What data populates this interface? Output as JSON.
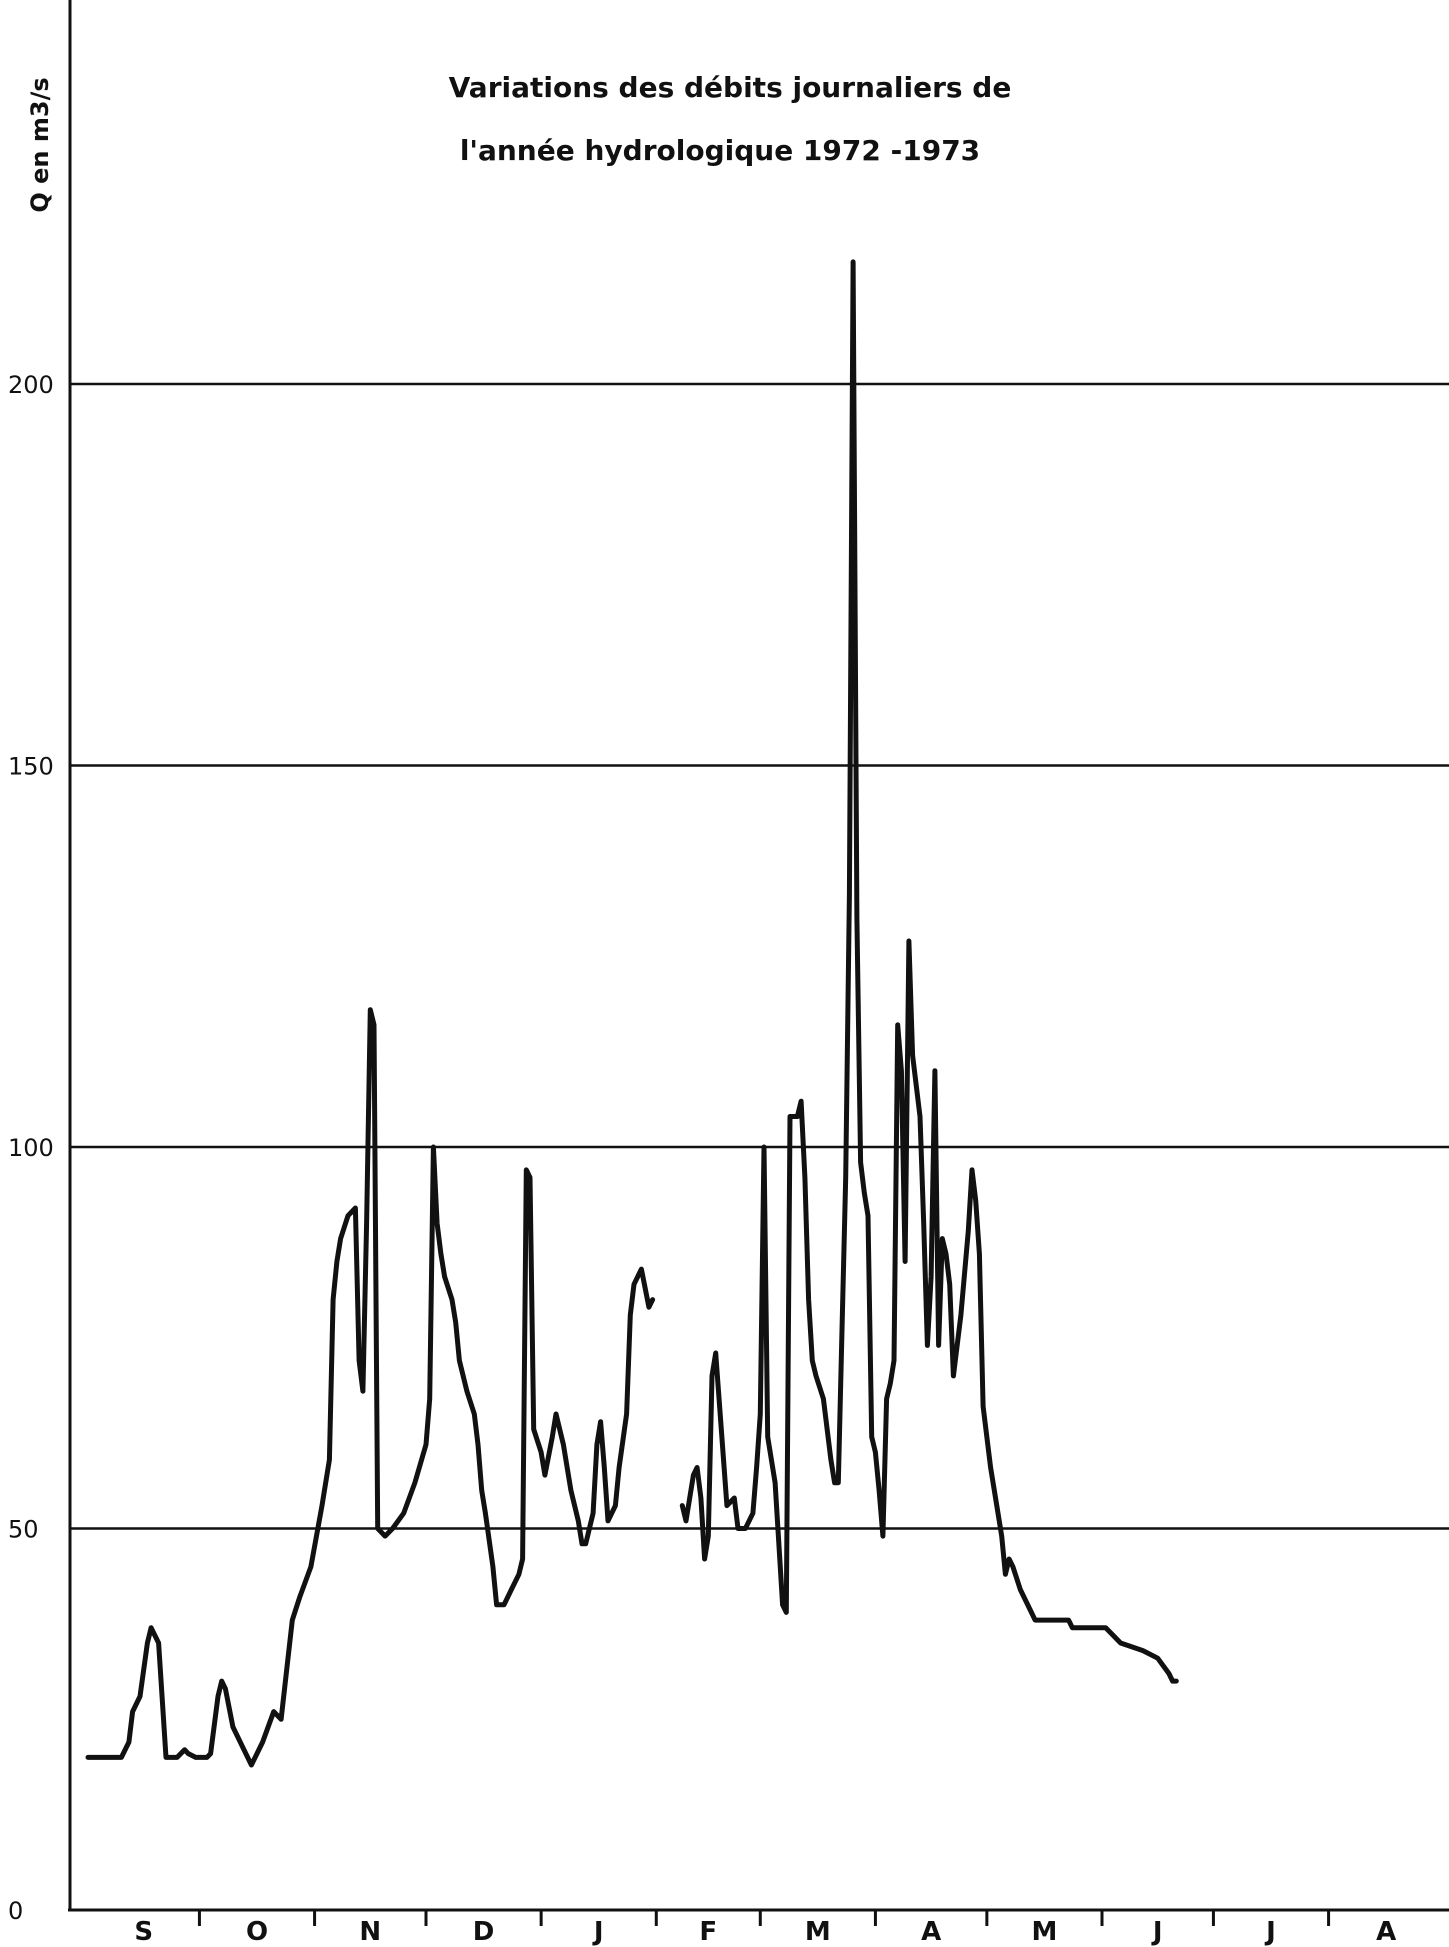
{
  "chart_data": {
    "type": "line",
    "title_line1": "Variations des débits journaliers de",
    "title_line2": "l'année hydrologique 1972 -1973",
    "ylabel": "Q en m3/s",
    "xlabel": "",
    "ylim": [
      0,
      250
    ],
    "yticks": [
      "0",
      "50",
      "100",
      "150",
      "200"
    ],
    "ytick_values": [
      0,
      50,
      100,
      150,
      200
    ],
    "grid": "horizontal",
    "months": [
      "S",
      "O",
      "N",
      "D",
      "J",
      "F",
      "M",
      "A",
      "M",
      "J",
      "J",
      "A"
    ],
    "x_unit": "day of hydrological year (1 = 1 Sept)",
    "series": [
      {
        "values": [
          [
            1,
            20
          ],
          [
            10,
            20
          ],
          [
            12,
            22
          ],
          [
            13,
            26
          ],
          [
            15,
            28
          ],
          [
            17,
            35
          ],
          [
            18,
            37
          ],
          [
            20,
            35
          ],
          [
            22,
            20
          ],
          [
            25,
            20
          ],
          [
            27,
            21
          ],
          [
            28,
            20.5
          ],
          [
            30,
            20
          ],
          [
            33,
            20
          ],
          [
            34,
            20.5
          ],
          [
            36,
            28
          ],
          [
            37,
            30
          ],
          [
            38,
            29
          ],
          [
            40,
            24
          ],
          [
            43,
            21
          ],
          [
            45,
            19
          ],
          [
            48,
            22
          ],
          [
            51,
            26
          ],
          [
            53,
            25
          ],
          [
            56,
            38
          ],
          [
            58,
            41
          ],
          [
            61,
            45
          ],
          [
            64,
            53
          ],
          [
            66,
            59
          ],
          [
            67,
            80
          ],
          [
            68,
            85
          ],
          [
            69,
            88
          ],
          [
            71,
            91
          ],
          [
            73,
            92
          ],
          [
            74,
            72
          ],
          [
            75,
            68
          ],
          [
            76,
            90
          ],
          [
            77,
            118
          ],
          [
            78,
            116
          ],
          [
            79,
            50
          ],
          [
            81,
            49
          ],
          [
            83,
            50
          ],
          [
            86,
            52
          ],
          [
            89,
            56
          ],
          [
            92,
            61
          ],
          [
            93,
            67
          ],
          [
            94,
            100
          ],
          [
            95,
            90
          ],
          [
            96,
            86
          ],
          [
            97,
            83
          ],
          [
            99,
            80
          ],
          [
            100,
            77
          ],
          [
            101,
            72
          ],
          [
            103,
            68
          ],
          [
            105,
            65
          ],
          [
            106,
            61
          ],
          [
            107,
            55
          ],
          [
            108,
            52
          ],
          [
            110,
            45
          ],
          [
            111,
            40
          ],
          [
            113,
            40
          ],
          [
            115,
            42
          ],
          [
            117,
            44
          ],
          [
            118,
            46
          ],
          [
            119,
            97
          ],
          [
            120,
            96
          ],
          [
            121,
            63
          ],
          [
            123,
            60
          ],
          [
            124,
            57
          ],
          [
            126,
            62
          ],
          [
            127,
            65
          ],
          [
            129,
            61
          ],
          [
            131,
            55
          ],
          [
            133,
            51
          ],
          [
            134,
            48
          ],
          [
            135,
            48
          ],
          [
            137,
            52
          ],
          [
            138,
            61
          ],
          [
            139,
            64
          ],
          [
            140,
            58
          ],
          [
            141,
            51
          ],
          [
            143,
            53
          ],
          [
            144,
            58
          ],
          [
            146,
            65
          ],
          [
            147,
            78
          ],
          [
            148,
            82
          ],
          [
            150,
            84
          ],
          [
            152,
            79
          ],
          [
            153,
            80
          ]
        ],
        "segment": 1
      },
      {
        "values": [
          [
            161,
            53
          ],
          [
            162,
            51
          ],
          [
            164,
            57
          ],
          [
            165,
            58
          ],
          [
            166,
            54
          ],
          [
            167,
            46
          ],
          [
            168,
            49
          ],
          [
            169,
            70
          ],
          [
            170,
            73
          ],
          [
            173,
            53
          ],
          [
            175,
            54
          ],
          [
            176,
            50
          ],
          [
            178,
            50
          ],
          [
            180,
            52
          ],
          [
            181,
            58
          ],
          [
            182,
            65
          ],
          [
            183,
            100
          ],
          [
            184,
            62
          ],
          [
            186,
            56
          ],
          [
            188,
            40
          ],
          [
            189,
            39
          ],
          [
            190,
            104
          ],
          [
            192,
            104
          ],
          [
            193,
            106
          ],
          [
            194,
            96
          ],
          [
            195,
            80
          ],
          [
            196,
            72
          ],
          [
            197,
            70
          ],
          [
            199,
            67
          ],
          [
            201,
            59
          ],
          [
            202,
            56
          ],
          [
            203,
            56
          ],
          [
            205,
            96
          ],
          [
            206,
            133
          ],
          [
            207,
            216
          ],
          [
            208,
            130
          ],
          [
            209,
            98
          ],
          [
            210,
            94
          ],
          [
            211,
            91
          ],
          [
            212,
            62
          ],
          [
            213,
            60
          ],
          [
            214,
            55
          ],
          [
            215,
            49
          ],
          [
            216,
            67
          ],
          [
            217,
            69
          ],
          [
            218,
            72
          ],
          [
            219,
            116
          ],
          [
            220,
            110
          ],
          [
            221,
            85
          ],
          [
            222,
            127
          ],
          [
            223,
            112
          ],
          [
            225,
            104
          ],
          [
            226,
            90
          ],
          [
            227,
            74
          ],
          [
            228,
            83
          ],
          [
            229,
            110
          ],
          [
            230,
            74
          ],
          [
            231,
            88
          ],
          [
            232,
            86
          ],
          [
            233,
            82
          ],
          [
            234,
            70
          ],
          [
            236,
            78
          ],
          [
            238,
            89
          ],
          [
            239,
            97
          ],
          [
            240,
            93
          ],
          [
            241,
            86
          ],
          [
            242,
            66
          ],
          [
            244,
            58
          ],
          [
            246,
            52
          ],
          [
            247,
            49
          ],
          [
            248,
            44
          ],
          [
            249,
            46
          ],
          [
            250,
            45
          ],
          [
            252,
            42
          ],
          [
            255,
            39
          ],
          [
            256,
            38
          ],
          [
            265,
            38
          ],
          [
            266,
            37
          ],
          [
            275,
            37
          ],
          [
            279,
            35
          ],
          [
            285,
            34
          ],
          [
            289,
            33
          ],
          [
            292,
            31
          ],
          [
            293,
            30
          ],
          [
            294,
            30
          ]
        ],
        "segment": 2
      }
    ]
  },
  "colors": {
    "line": "#111111",
    "grid": "#111111",
    "background": "#ffffff"
  }
}
